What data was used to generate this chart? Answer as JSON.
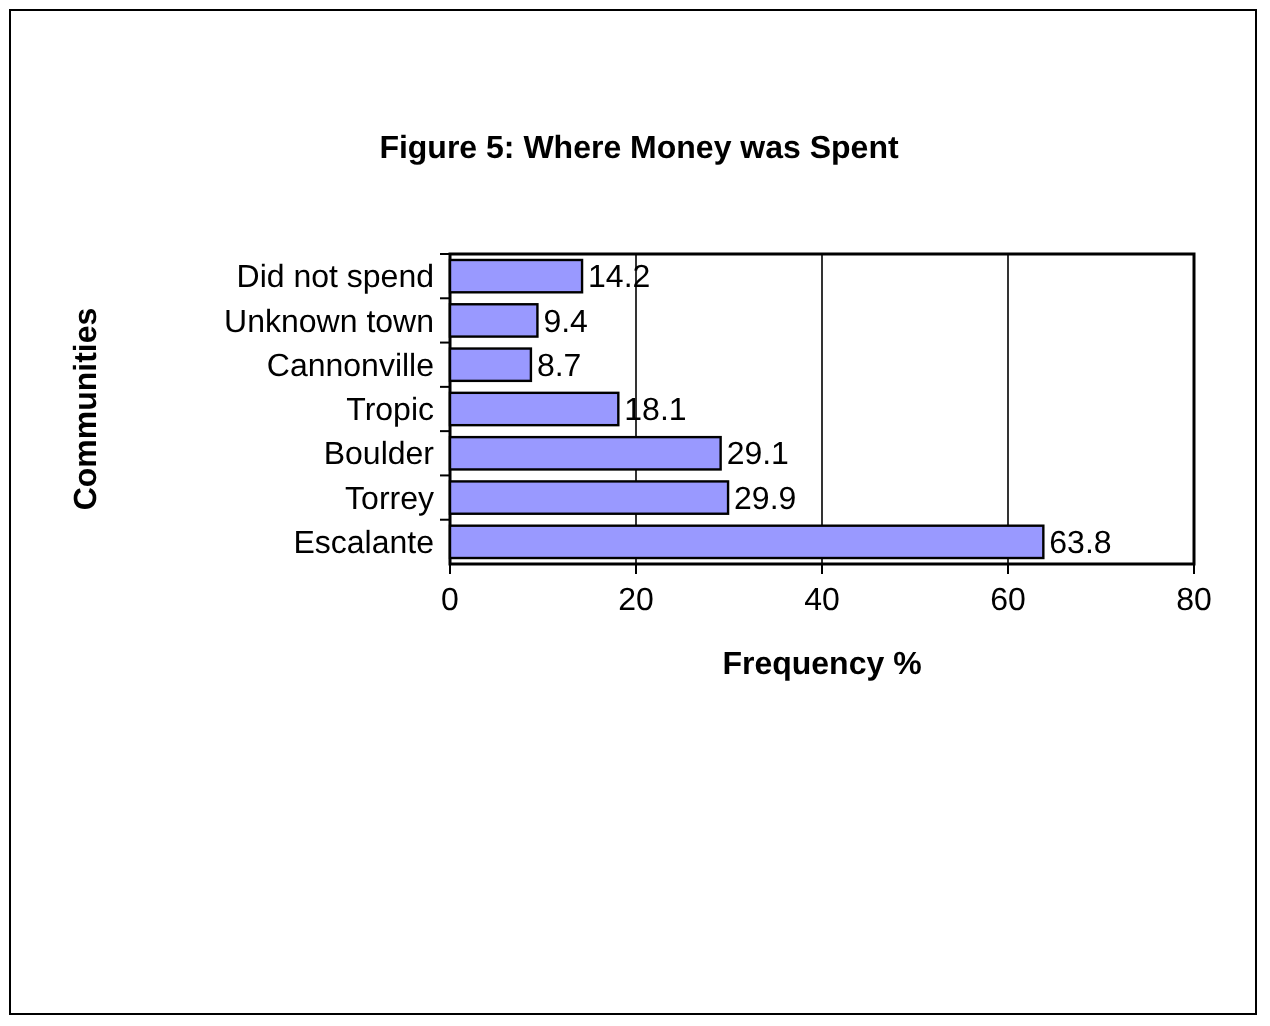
{
  "chart_data": {
    "type": "bar",
    "orientation": "horizontal",
    "title": "Figure 5: Where Money was Spent",
    "xlabel": "Frequency %",
    "ylabel": "Communities",
    "categories": [
      "Did not spend",
      "Unknown town",
      "Cannonville",
      "Tropic",
      "Boulder",
      "Torrey",
      "Escalante"
    ],
    "values": [
      14.2,
      9.4,
      8.7,
      18.1,
      29.1,
      29.9,
      63.8
    ],
    "color": "#9999ff",
    "xlim": [
      0,
      80
    ],
    "xticks": [
      0,
      20,
      40,
      60,
      80
    ],
    "grid": "x",
    "data_labels": true
  }
}
